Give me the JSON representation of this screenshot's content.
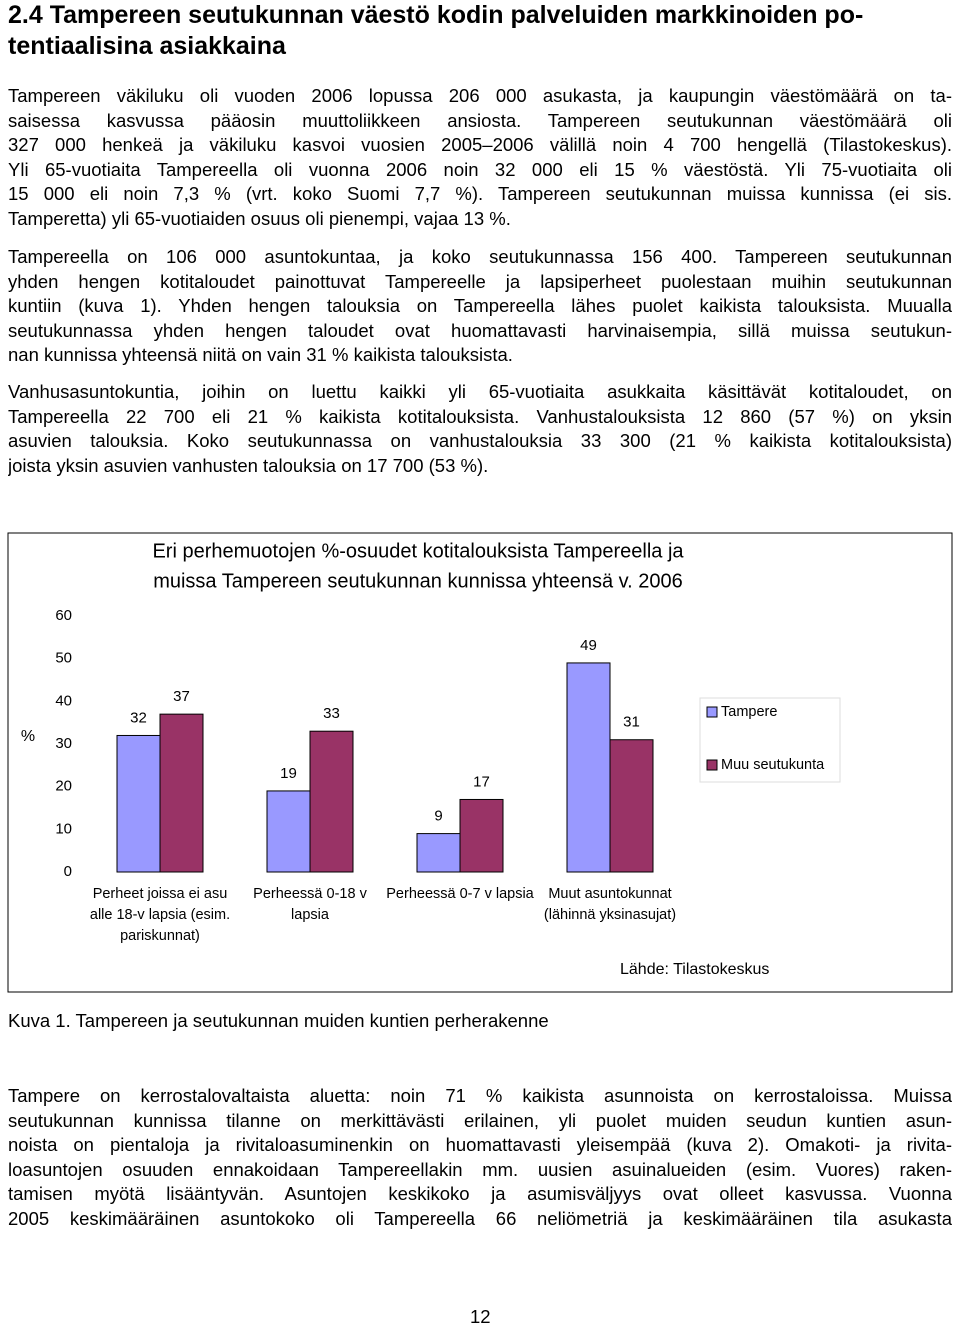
{
  "heading": [
    "2.4 Tampereen seutukunnan väestö kodin palveluiden markkinoiden po-",
    "tentiaalisina asiakkaina"
  ],
  "paragraphs": [
    [
      "Tampereen väkiluku oli vuoden 2006 lopussa 206 000 asukasta, ja kaupungin väestömäärä on ta-",
      "saisessa kasvussa pääosin muuttoliikkeen ansiosta. Tampereen seutukunnan väestömäärä oli",
      "327 000 henkeä ja väkiluku kasvoi vuosien 2005–2006 välillä noin 4 700 hengellä (Tilastokeskus).",
      "Yli 65-vuotiaita Tampereella oli vuonna 2006 noin 32 000 eli 15 % väestöstä. Yli 75-vuotiaita oli",
      "15 000 eli noin 7,3 % (vrt. koko Suomi 7,7 %). Tampereen seutukunnan muissa kunnissa (ei sis.",
      "Tamperetta) yli 65-vuotiaiden osuus oli pienempi, vajaa 13 %."
    ],
    [
      "Tampereella on 106 000 asuntokuntaa, ja koko seutukunnassa 156 400. Tampereen seutukunnan",
      "yhden hengen kotitaloudet painottuvat Tampereelle ja lapsiperheet puolestaan muihin seutukunnan",
      "kuntiin (kuva 1). Yhden hengen talouksia on Tampereella lähes puolet kaikista talouksista. Muualla",
      "seutukunnassa yhden hengen taloudet ovat huomattavasti harvinaisempia, sillä muissa seutukun-",
      "nan kunnissa yhteensä niitä on vain 31 % kaikista talouksista."
    ],
    [
      "Vanhusasuntokuntia, joihin on luettu kaikki yli 65-vuotiaita asukkaita käsittävät kotitaloudet, on",
      "Tampereella 22 700 eli 21 % kaikista kotitalouksista. Vanhustalouksista 12 860 (57 %) on yksin",
      "asuvien talouksia. Koko seutukunnassa on vanhustalouksia 33 300 (21 % kaikista kotitalouksista)",
      "joista yksin asuvien vanhusten talouksia on 17 700 (53 %)."
    ]
  ],
  "chart_data": {
    "type": "bar",
    "title": [
      "Eri perhemuotojen %-osuudet kotitalouksista Tampereella ja",
      "muissa Tampereen seutukunnan kunnissa yhteensä v. 2006"
    ],
    "y_label": "%",
    "categories": [
      "Perheet joissa ei asu alle 18-v lapsia (esim. pariskunnat)",
      "Perheessä 0-18 v lapsia",
      "Perheessä 0-7 v lapsia",
      "Muut asuntokunnat (lähinnä yksinasujat)"
    ],
    "series": [
      {
        "name": "Tampere",
        "color": "#9999ff",
        "values": [
          32,
          19,
          9,
          49
        ]
      },
      {
        "name": "Muu seutukunta",
        "color": "#993366",
        "values": [
          37,
          33,
          17,
          31
        ]
      }
    ],
    "ylim": [
      0,
      60
    ],
    "yticks": [
      0,
      10,
      20,
      30,
      40,
      50,
      60
    ],
    "grid": false,
    "legend": "right",
    "source": "Lähde: Tilastokeskus"
  },
  "caption": "Kuva 1. Tampereen ja seutukunnan muiden kuntien perherakenne",
  "paragraphs_after": [
    [
      "Tampere on kerrostalovaltaista aluetta: noin 71 % kaikista asunnoista on kerrostaloissa. Muissa",
      "seutukunnan kunnissa tilanne on merkittävästi erilainen, yli puolet muiden seudun kuntien asun-",
      "noista on pientaloja ja rivitaloasuminenkin on huomattavasti yleisempää (kuva 2). Omakoti- ja rivita-",
      "loasuntojen osuuden ennakoidaan Tampereellakin mm. uusien asuinalueiden (esim. Vuores) raken-",
      "tamisen myötä lisääntyvän. Asuntojen keskikoko ja asumisväljyys ovat olleet kasvussa. Vuonna",
      "2005 keskimääräinen asuntokoko oli Tampereella 66 neliömetriä ja keskimääräinen tila asukasta"
    ]
  ],
  "page_number": "12"
}
